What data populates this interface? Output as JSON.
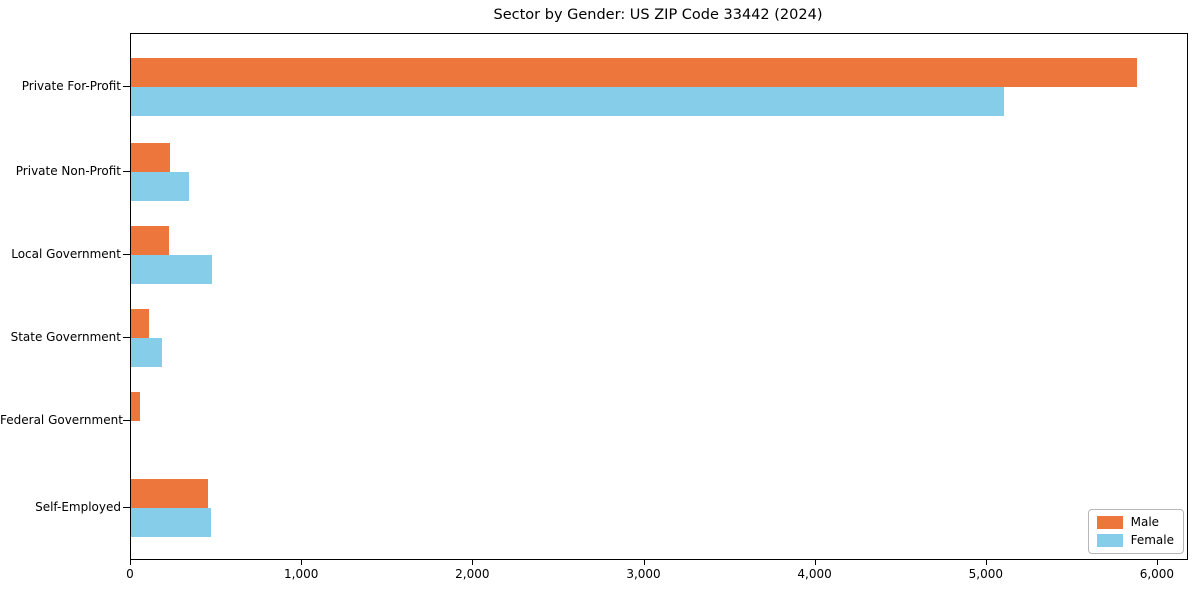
{
  "title": "Sector by Gender: US ZIP Code 33442 (2024)",
  "colors": {
    "male": "#ec763c",
    "female": "#85cde8",
    "axis": "#000000",
    "background": "#ffffff",
    "legend_border": "#b7b7b7"
  },
  "legend": {
    "position": "lower right",
    "entries": [
      {
        "label": "Male",
        "color": "#ec763c"
      },
      {
        "label": "Female",
        "color": "#85cde8"
      }
    ]
  },
  "chart_data": {
    "type": "bar",
    "orientation": "horizontal",
    "title": "Sector by Gender: US ZIP Code 33442 (2024)",
    "xlabel": "",
    "ylabel": "",
    "grid": false,
    "legend_position": "lower right",
    "categories": [
      "Private For-Profit",
      "Private Non-Profit",
      "Local Government",
      "State Government",
      "Federal Government",
      "Self-Employed"
    ],
    "series": [
      {
        "name": "Male",
        "color": "#ec763c",
        "values": [
          5880,
          225,
          220,
          105,
          50,
          450
        ]
      },
      {
        "name": "Female",
        "color": "#85cde8",
        "values": [
          5100,
          340,
          475,
          180,
          0,
          470
        ]
      }
    ],
    "xlim": [
      0,
      6170
    ],
    "x_tick_values": [
      0,
      1000,
      2000,
      3000,
      4000,
      5000,
      6000
    ],
    "x_tick_labels": [
      "0",
      "1,000",
      "2,000",
      "3,000",
      "4,000",
      "5,000",
      "6,000"
    ]
  }
}
